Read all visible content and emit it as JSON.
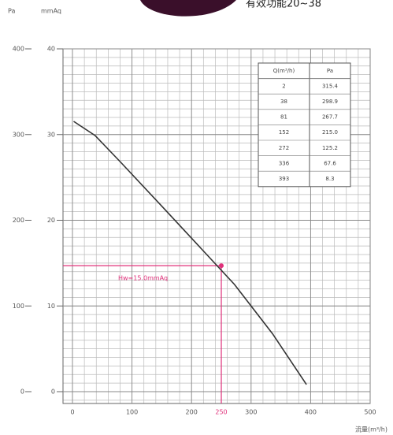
{
  "chart_data": {
    "type": "line",
    "note": "有效功能20~38",
    "y_label": "Pa",
    "y2_label": "mmAq",
    "x_label": "流量(m³/h)",
    "xlim": [
      0,
      500
    ],
    "xticks": [
      0,
      100,
      200,
      300,
      400,
      500
    ],
    "ylim": [
      0,
      400
    ],
    "yticks": [
      0,
      100,
      200,
      300,
      400
    ],
    "y2lim": [
      0,
      40
    ],
    "y2ticks": [
      0,
      10,
      20,
      30,
      40
    ],
    "grid": true,
    "x": [
      2,
      38,
      81,
      152,
      272,
      336,
      393
    ],
    "series": [
      {
        "name": "Pa",
        "color": "#333333",
        "values": [
          315.4,
          298.9,
          267.7,
          215.0,
          125.2,
          67.6,
          8.3
        ],
        "value_labels": [
          "315.4",
          "298.9",
          "267.7",
          "215.0",
          "125.2",
          "67.6",
          "8.3"
        ]
      }
    ],
    "table_header": [
      "Q(m³/h)",
      "Pa"
    ],
    "operating_point": {
      "x": 250,
      "y": 147,
      "label": "Hw=15.0mmAq",
      "color": "#e0307a"
    }
  }
}
